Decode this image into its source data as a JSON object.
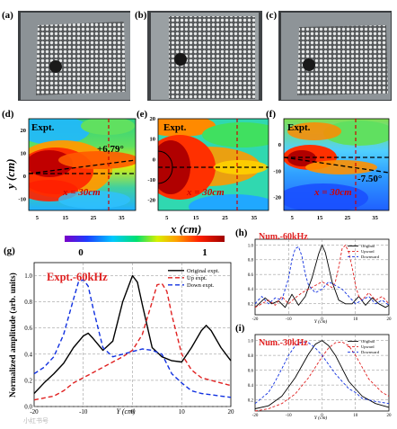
{
  "panel_letters": [
    "(a)",
    "(b)",
    "(c)",
    "(d)",
    "(e)",
    "(f)",
    "(g)",
    "(h)",
    "(i)"
  ],
  "maps": {
    "ylabel": "y (cm)",
    "xlabel": "x (cm)",
    "d": {
      "tag": "Expt.",
      "angle": "+6.79°",
      "xline": "x = 30cm"
    },
    "e": {
      "tag": "Expt.",
      "xline": "x = 30cm"
    },
    "f": {
      "tag": "Expt.",
      "angle": "-7.50°",
      "xline": "x = 30cm"
    },
    "xticks": [
      "5",
      "15",
      "25",
      "35"
    ],
    "yticks_d": [
      "20",
      "10",
      "0",
      "-10"
    ],
    "yticks_e": [
      "20",
      "10",
      "0",
      "-10",
      "-20"
    ],
    "yticks_f": [
      "0",
      "-10",
      "-20"
    ]
  },
  "colorbar": {
    "min": "0",
    "max": "1",
    "colors": [
      "#7a00c8",
      "#1d3cff",
      "#00c8ff",
      "#00e070",
      "#d8f000",
      "#ffa000",
      "#ff2000",
      "#a00000"
    ]
  },
  "panel_g": {
    "ylabel": "Normalized amplitude (arb. units)",
    "xlabel": "Y (cm)",
    "tag": "Expt.-60kHz"
  },
  "panel_h": {
    "tag": "Num.-60kHz",
    "xlabel": "Y (cm)"
  },
  "panel_i": {
    "tag": "Num.-30kHz",
    "xlabel": "Y (cm)"
  },
  "footer": {
    "watermark": "小红书号"
  },
  "chart_data": [
    {
      "id": "g",
      "type": "line",
      "title": "Expt.-60kHz",
      "xlabel": "Y (cm)",
      "ylabel": "Normalized amplitude (arb. units)",
      "xlim": [
        -20,
        20
      ],
      "ylim": [
        0,
        1.1
      ],
      "xticks": [
        -20,
        -10,
        0,
        10,
        20
      ],
      "yticks": [
        0.0,
        0.2,
        0.4,
        0.6,
        0.8,
        1.0
      ],
      "grid": true,
      "legend": "top-right",
      "series": [
        {
          "name": "Original expt.",
          "color": "#000000",
          "dash": "solid",
          "x": [
            -20,
            -18,
            -16,
            -14,
            -12,
            -10,
            -9,
            -8,
            -6,
            -4,
            -2,
            0,
            1,
            2,
            4,
            6,
            8,
            10,
            12,
            14,
            15,
            16,
            18,
            20
          ],
          "y": [
            0.1,
            0.18,
            0.25,
            0.33,
            0.45,
            0.54,
            0.56,
            0.52,
            0.43,
            0.5,
            0.8,
            1.0,
            0.95,
            0.78,
            0.45,
            0.38,
            0.35,
            0.34,
            0.45,
            0.58,
            0.62,
            0.58,
            0.45,
            0.35
          ]
        },
        {
          "name": "Up expt.",
          "color": "#e02020",
          "dash": "dashed",
          "x": [
            -20,
            -16,
            -14,
            -12,
            -10,
            -8,
            -6,
            -4,
            -2,
            0,
            2,
            4,
            5,
            6,
            7,
            8,
            10,
            12,
            14,
            16,
            18,
            20
          ],
          "y": [
            0.05,
            0.08,
            0.12,
            0.18,
            0.22,
            0.26,
            0.3,
            0.34,
            0.38,
            0.43,
            0.55,
            0.8,
            0.93,
            0.94,
            0.88,
            0.7,
            0.4,
            0.28,
            0.22,
            0.2,
            0.18,
            0.16
          ]
        },
        {
          "name": "Down expt.",
          "color": "#1030e0",
          "dash": "dashed",
          "x": [
            -20,
            -18,
            -16,
            -14,
            -12,
            -11,
            -10,
            -9,
            -8,
            -6,
            -4,
            -2,
            0,
            2,
            4,
            6,
            8,
            10,
            12,
            14,
            16,
            18,
            20
          ],
          "y": [
            0.25,
            0.3,
            0.38,
            0.55,
            0.82,
            0.95,
            0.97,
            0.92,
            0.75,
            0.45,
            0.38,
            0.4,
            0.42,
            0.44,
            0.43,
            0.4,
            0.25,
            0.18,
            0.12,
            0.1,
            0.09,
            0.08,
            0.07
          ]
        }
      ]
    },
    {
      "id": "h",
      "type": "line",
      "title": "Num.-60kHz",
      "xlabel": "Y (cm)",
      "xlim": [
        -20,
        20
      ],
      "ylim": [
        0.05,
        1.08
      ],
      "xticks": [
        -20,
        -10,
        0,
        10,
        20
      ],
      "yticks": [
        0.2,
        0.4,
        0.6,
        0.8,
        1.0
      ],
      "grid": true,
      "legend": "top-right",
      "series": [
        {
          "name": "Original",
          "color": "#000000",
          "dash": "solid",
          "x": [
            -20,
            -17,
            -15,
            -13,
            -11,
            -9,
            -7,
            -5,
            -3,
            -1,
            0,
            1,
            3,
            5,
            7,
            9,
            11,
            13,
            15,
            17,
            19,
            20
          ],
          "y": [
            0.15,
            0.28,
            0.2,
            0.24,
            0.15,
            0.33,
            0.18,
            0.3,
            0.55,
            0.88,
            1.0,
            0.9,
            0.5,
            0.25,
            0.2,
            0.2,
            0.3,
            0.18,
            0.28,
            0.2,
            0.15,
            0.18
          ]
        },
        {
          "name": "Upward",
          "color": "#e02020",
          "dash": "dashed",
          "x": [
            -20,
            -18,
            -16,
            -14,
            -12,
            -10,
            -8,
            -6,
            -4,
            -2,
            0,
            2,
            3,
            4,
            5,
            6,
            7,
            8,
            9,
            10,
            11,
            12,
            14,
            16,
            18,
            20
          ],
          "y": [
            0.15,
            0.2,
            0.25,
            0.18,
            0.3,
            0.2,
            0.28,
            0.35,
            0.4,
            0.45,
            0.5,
            0.45,
            0.42,
            0.5,
            0.7,
            0.95,
            1.0,
            0.9,
            0.7,
            0.45,
            0.3,
            0.25,
            0.35,
            0.25,
            0.3,
            0.2
          ]
        },
        {
          "name": "Downward",
          "color": "#1030e0",
          "dash": "dashed",
          "x": [
            -20,
            -18,
            -16,
            -14,
            -12,
            -10,
            -9,
            -8,
            -7,
            -6,
            -5,
            -4,
            -2,
            0,
            2,
            4,
            6,
            8,
            10,
            12,
            14,
            16,
            18,
            20
          ],
          "y": [
            0.2,
            0.3,
            0.2,
            0.28,
            0.25,
            0.55,
            0.8,
            0.95,
            0.98,
            0.85,
            0.6,
            0.45,
            0.35,
            0.4,
            0.5,
            0.45,
            0.4,
            0.3,
            0.2,
            0.25,
            0.3,
            0.2,
            0.25,
            0.18
          ]
        }
      ]
    },
    {
      "id": "i",
      "type": "line",
      "title": "Num.-30kHz",
      "xlabel": "Y (cm)",
      "xlim": [
        -20,
        20
      ],
      "ylim": [
        0.05,
        1.08
      ],
      "xticks": [
        -20,
        -10,
        0,
        10,
        20
      ],
      "yticks": [
        0.2,
        0.4,
        0.6,
        0.8,
        1.0
      ],
      "grid": true,
      "legend": "top-right",
      "series": [
        {
          "name": "Original",
          "color": "#000000",
          "dash": "solid",
          "x": [
            -20,
            -16,
            -12,
            -8,
            -4,
            -2,
            0,
            2,
            4,
            8,
            12,
            16,
            20
          ],
          "y": [
            0.08,
            0.12,
            0.25,
            0.5,
            0.82,
            0.95,
            1.0,
            0.93,
            0.8,
            0.45,
            0.25,
            0.15,
            0.1
          ]
        },
        {
          "name": "Upward",
          "color": "#e02020",
          "dash": "dashed",
          "x": [
            -20,
            -16,
            -12,
            -8,
            -4,
            0,
            2,
            4,
            6,
            8,
            10,
            14,
            18,
            20
          ],
          "y": [
            0.05,
            0.08,
            0.15,
            0.28,
            0.5,
            0.78,
            0.9,
            0.97,
            0.98,
            0.93,
            0.8,
            0.48,
            0.3,
            0.25
          ]
        },
        {
          "name": "Downward",
          "color": "#1030e0",
          "dash": "dashed",
          "x": [
            -20,
            -16,
            -14,
            -12,
            -10,
            -8,
            -6,
            -4,
            -2,
            0,
            4,
            8,
            10,
            12,
            16,
            20
          ],
          "y": [
            0.15,
            0.3,
            0.45,
            0.62,
            0.8,
            0.93,
            0.98,
            0.97,
            0.9,
            0.8,
            0.55,
            0.35,
            0.3,
            0.22,
            0.18,
            0.15
          ]
        }
      ]
    }
  ]
}
